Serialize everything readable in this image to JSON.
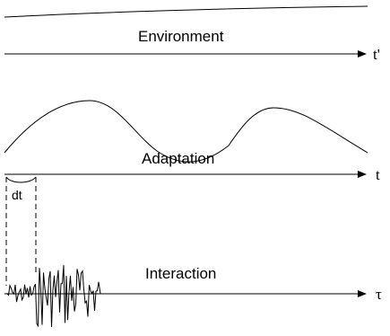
{
  "panels": {
    "environment": {
      "label": "Environment",
      "axis_label": "t'"
    },
    "adaptation": {
      "label": "Adaptation",
      "axis_label": "t"
    },
    "interaction": {
      "label": "Interaction",
      "axis_label": "τ"
    }
  },
  "interval_label": "dt",
  "colors": {
    "stroke": "#000000",
    "background": "#ffffff"
  }
}
